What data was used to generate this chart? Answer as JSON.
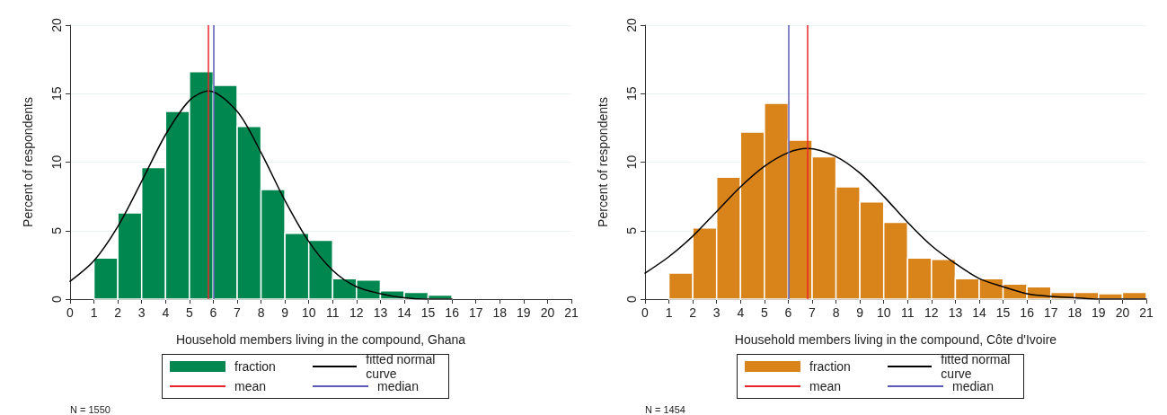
{
  "chart_data": [
    {
      "type": "histogram",
      "xlabel": "Household members living in the compound, Ghana",
      "ylabel": "Percent of respondents",
      "xlim": [
        0,
        21
      ],
      "xticks": [
        0,
        1,
        2,
        3,
        4,
        5,
        6,
        7,
        8,
        9,
        10,
        11,
        12,
        13,
        14,
        15,
        16,
        17,
        18,
        19,
        20,
        21
      ],
      "ylim": [
        0,
        20
      ],
      "yticks": [
        0,
        5,
        10,
        15,
        20
      ],
      "grid": "y",
      "legend": "bottom",
      "series": [
        {
          "name": "fraction",
          "color": "#00874f",
          "bins": [
            1,
            2,
            3,
            4,
            5,
            6,
            7,
            8,
            9,
            10,
            11,
            12,
            13,
            14,
            15,
            16
          ],
          "values": [
            3.0,
            6.3,
            9.6,
            13.7,
            16.6,
            15.6,
            12.6,
            8.0,
            4.8,
            4.3,
            1.5,
            1.4,
            0.6,
            0.5,
            0.3
          ]
        },
        {
          "type": "line",
          "name": "fitted normal curve",
          "color": "#000000",
          "marker": "none",
          "x": [
            0,
            1,
            2,
            3,
            4,
            5,
            5.8,
            7,
            8,
            9,
            10,
            11,
            12,
            13,
            14,
            15,
            16
          ],
          "values": [
            1.3,
            2.8,
            5.3,
            8.6,
            12.0,
            14.5,
            15.2,
            13.7,
            10.7,
            7.2,
            4.2,
            2.1,
            0.9,
            0.4,
            0.1,
            0.0,
            0.0
          ]
        }
      ],
      "ref_lines": [
        {
          "axis": "x",
          "value": 5.8,
          "label": "mean",
          "color": "#e8262b"
        },
        {
          "axis": "x",
          "value": 6,
          "label": "median",
          "color": "#5b5bb5"
        }
      ],
      "annotations": [
        "N = 1550"
      ]
    },
    {
      "type": "histogram",
      "xlabel": "Household members living in the compound, Côte d'Ivoire",
      "ylabel": "Percent of respondents",
      "xlim": [
        0,
        21
      ],
      "xticks": [
        0,
        1,
        2,
        3,
        4,
        5,
        6,
        7,
        8,
        9,
        10,
        11,
        12,
        13,
        14,
        15,
        16,
        17,
        18,
        19,
        20,
        21
      ],
      "ylim": [
        0,
        20
      ],
      "yticks": [
        0,
        5,
        10,
        15,
        20
      ],
      "grid": "y",
      "legend": "bottom",
      "series": [
        {
          "name": "fraction",
          "color": "#d9831b",
          "bins": [
            1,
            2,
            3,
            4,
            5,
            6,
            7,
            8,
            9,
            10,
            11,
            12,
            13,
            14,
            15,
            16,
            17,
            18,
            19,
            20,
            21
          ],
          "values": [
            1.9,
            5.2,
            8.9,
            12.2,
            14.3,
            11.6,
            10.4,
            8.2,
            7.1,
            5.6,
            3.0,
            2.9,
            1.5,
            1.5,
            1.1,
            0.9,
            0.5,
            0.5,
            0.4,
            0.5
          ]
        },
        {
          "type": "line",
          "name": "fitted normal curve",
          "color": "#000000",
          "marker": "none",
          "x": [
            0,
            1,
            2,
            3,
            4,
            5,
            6,
            6.8,
            8,
            9,
            10,
            11,
            12,
            13,
            14,
            15,
            16,
            17,
            18,
            19,
            20,
            21
          ],
          "values": [
            1.9,
            3.1,
            4.6,
            6.4,
            8.2,
            9.7,
            10.7,
            11.0,
            10.4,
            9.2,
            7.5,
            5.6,
            3.9,
            2.6,
            1.5,
            0.9,
            0.4,
            0.2,
            0.1,
            0.0,
            0.0,
            0.0
          ]
        }
      ],
      "ref_lines": [
        {
          "axis": "x",
          "value": 6.8,
          "label": "mean",
          "color": "#e8262b"
        },
        {
          "axis": "x",
          "value": 6,
          "label": "median",
          "color": "#5b5bb5"
        }
      ],
      "annotations": [
        "N = 1454"
      ]
    }
  ]
}
